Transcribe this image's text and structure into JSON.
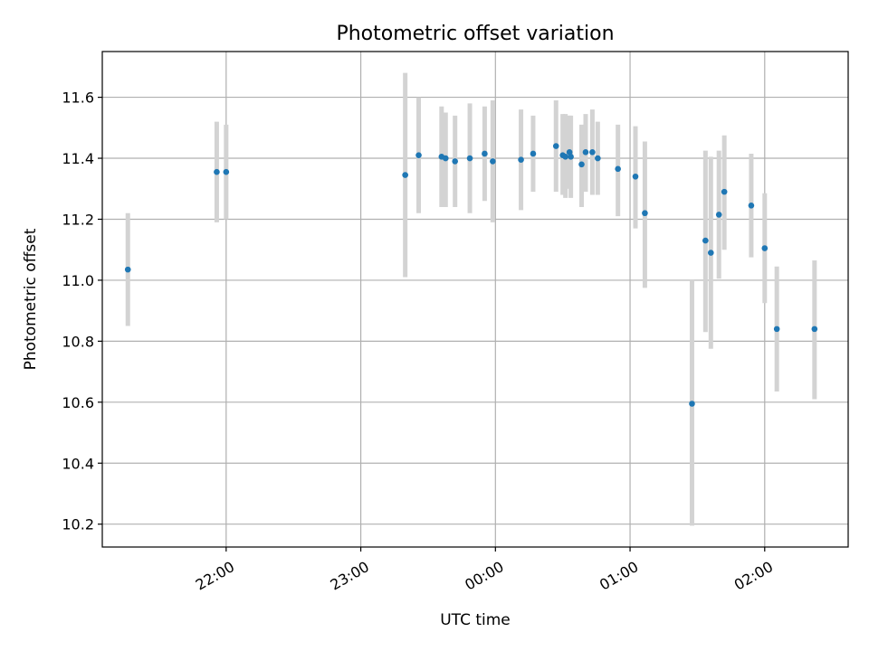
{
  "chart_data": {
    "type": "scatter",
    "title": "Photometric offset variation",
    "xlabel": "UTC time",
    "ylabel": "Photometric offset",
    "x_unit": "UTC time (hours after 00:00; negative = previous day)",
    "xlim": [
      -2.92,
      2.62
    ],
    "ylim": [
      10.125,
      11.75
    ],
    "x_ticks": [
      {
        "value": -2.0,
        "label": "22:00"
      },
      {
        "value": -1.0,
        "label": "23:00"
      },
      {
        "value": 0.0,
        "label": "00:00"
      },
      {
        "value": 1.0,
        "label": "01:00"
      },
      {
        "value": 2.0,
        "label": "02:00"
      }
    ],
    "y_ticks": [
      {
        "value": 10.2,
        "label": "10.2"
      },
      {
        "value": 10.4,
        "label": "10.4"
      },
      {
        "value": 10.6,
        "label": "10.6"
      },
      {
        "value": 10.8,
        "label": "10.8"
      },
      {
        "value": 11.0,
        "label": "11.0"
      },
      {
        "value": 11.2,
        "label": "11.2"
      },
      {
        "value": 11.4,
        "label": "11.4"
      },
      {
        "value": 11.6,
        "label": "11.6"
      }
    ],
    "grid": true,
    "colors": {
      "point": "#1f77b4",
      "errorbar": "#d3d3d3",
      "grid": "#b0b0b0"
    },
    "points": [
      {
        "x": -2.73,
        "y": 11.035,
        "low": 10.85,
        "high": 11.22
      },
      {
        "x": -2.07,
        "y": 11.355,
        "low": 11.19,
        "high": 11.52
      },
      {
        "x": -2.0,
        "y": 11.355,
        "low": 11.2,
        "high": 11.51
      },
      {
        "x": -0.67,
        "y": 11.345,
        "low": 11.01,
        "high": 11.68
      },
      {
        "x": -0.57,
        "y": 11.41,
        "low": 11.22,
        "high": 11.6
      },
      {
        "x": -0.4,
        "y": 11.405,
        "low": 11.24,
        "high": 11.57
      },
      {
        "x": -0.37,
        "y": 11.4,
        "low": 11.24,
        "high": 11.55
      },
      {
        "x": -0.3,
        "y": 11.39,
        "low": 11.24,
        "high": 11.54
      },
      {
        "x": -0.19,
        "y": 11.4,
        "low": 11.22,
        "high": 11.58
      },
      {
        "x": -0.08,
        "y": 11.415,
        "low": 11.26,
        "high": 11.57
      },
      {
        "x": -0.02,
        "y": 11.39,
        "low": 11.19,
        "high": 11.59
      },
      {
        "x": 0.19,
        "y": 11.395,
        "low": 11.23,
        "high": 11.56
      },
      {
        "x": 0.28,
        "y": 11.415,
        "low": 11.29,
        "high": 11.54
      },
      {
        "x": 0.45,
        "y": 11.44,
        "low": 11.29,
        "high": 11.59
      },
      {
        "x": 0.5,
        "y": 11.41,
        "low": 11.28,
        "high": 11.545
      },
      {
        "x": 0.52,
        "y": 11.405,
        "low": 11.27,
        "high": 11.545
      },
      {
        "x": 0.55,
        "y": 11.42,
        "low": 11.3,
        "high": 11.54
      },
      {
        "x": 0.56,
        "y": 11.405,
        "low": 11.27,
        "high": 11.54
      },
      {
        "x": 0.64,
        "y": 11.38,
        "low": 11.24,
        "high": 11.51
      },
      {
        "x": 0.67,
        "y": 11.42,
        "low": 11.29,
        "high": 11.545
      },
      {
        "x": 0.72,
        "y": 11.42,
        "low": 11.28,
        "high": 11.56
      },
      {
        "x": 0.76,
        "y": 11.4,
        "low": 11.28,
        "high": 11.52
      },
      {
        "x": 0.91,
        "y": 11.365,
        "low": 11.21,
        "high": 11.51
      },
      {
        "x": 1.04,
        "y": 11.34,
        "low": 11.17,
        "high": 11.505
      },
      {
        "x": 1.11,
        "y": 11.22,
        "low": 10.975,
        "high": 11.455
      },
      {
        "x": 1.46,
        "y": 10.595,
        "low": 10.195,
        "high": 11.0
      },
      {
        "x": 1.56,
        "y": 11.13,
        "low": 10.83,
        "high": 11.425
      },
      {
        "x": 1.6,
        "y": 11.09,
        "low": 10.775,
        "high": 11.405
      },
      {
        "x": 1.66,
        "y": 11.215,
        "low": 11.005,
        "high": 11.425
      },
      {
        "x": 1.7,
        "y": 11.29,
        "low": 11.1,
        "high": 11.475
      },
      {
        "x": 1.9,
        "y": 11.245,
        "low": 11.075,
        "high": 11.415
      },
      {
        "x": 2.0,
        "y": 11.105,
        "low": 10.925,
        "high": 11.285
      },
      {
        "x": 2.09,
        "y": 10.84,
        "low": 10.635,
        "high": 11.045
      },
      {
        "x": 2.37,
        "y": 10.84,
        "low": 10.61,
        "high": 11.065
      }
    ]
  }
}
